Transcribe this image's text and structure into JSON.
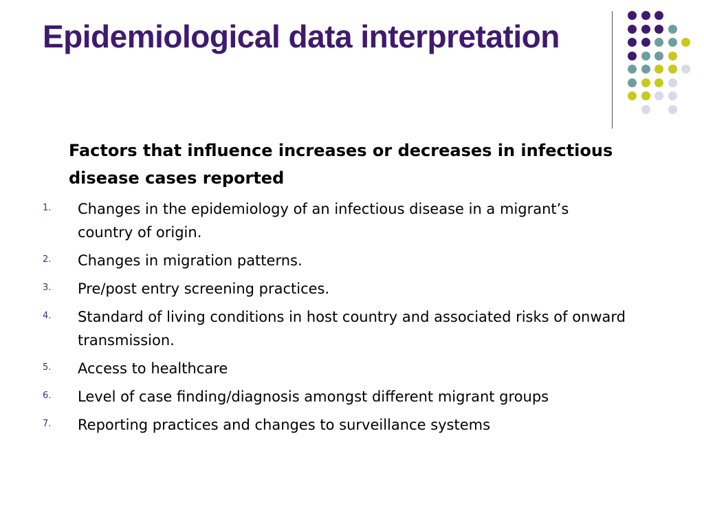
{
  "slide": {
    "title": "Epidemiological data interpretation",
    "subheading": "Factors that influence increases or decreases in infectious disease cases reported",
    "items": [
      {
        "number": "1.",
        "text": "Changes in the epidemiology of an infectious disease in a migrant’s country of origin."
      },
      {
        "number": "2.",
        "text": "Changes in migration patterns."
      },
      {
        "number": "3.",
        "text": "Pre/post entry screening practices."
      },
      {
        "number": "4.",
        "text": "Standard of living conditions in host country and associated risks of onward transmission."
      },
      {
        "number": "5.",
        "text": "Access to healthcare"
      },
      {
        "number": "6.",
        "text": "Level of case finding/diagnosis amongst different migrant groups"
      },
      {
        "number": "7.",
        "text": "Reporting practices and changes to surveillance systems"
      }
    ]
  },
  "colors": {
    "title": "#3f1a6e",
    "dot_purple": "#3f1a6e",
    "dot_teal": "#6f9ea0",
    "dot_yellow": "#c9c91c",
    "dot_lavender": "#d9d9ea",
    "divider": "#555555"
  },
  "decoration": {
    "icon": "dot-grid-icon",
    "rows": [
      [
        "purple",
        "purple",
        "purple",
        "none",
        "none"
      ],
      [
        "purple",
        "purple",
        "purple",
        "teal",
        "none"
      ],
      [
        "purple",
        "purple",
        "teal",
        "teal",
        "yellow"
      ],
      [
        "purple",
        "teal",
        "teal",
        "yellow",
        "none"
      ],
      [
        "teal",
        "teal",
        "yellow",
        "yellow",
        "lavender"
      ],
      [
        "teal",
        "yellow",
        "yellow",
        "lavender",
        "none"
      ],
      [
        "yellow",
        "yellow",
        "lavender",
        "lavender",
        "none"
      ],
      [
        "none",
        "lavender",
        "none",
        "lavender",
        "none"
      ]
    ]
  }
}
